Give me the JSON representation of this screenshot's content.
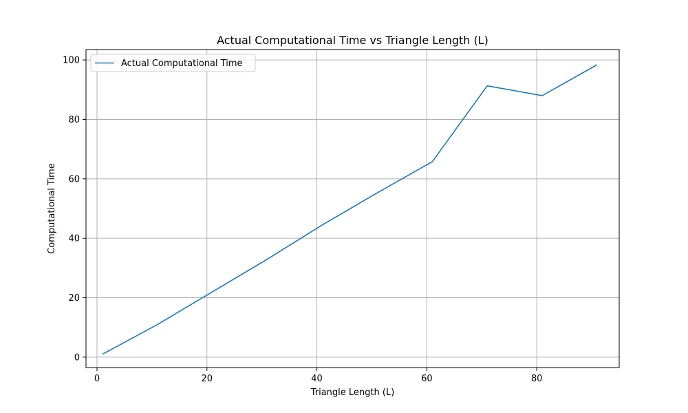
{
  "chart_data": {
    "type": "line",
    "title": "Actual Computational Time vs Triangle Length (L)",
    "xlabel": "Triangle Length (L)",
    "ylabel": "Computational Time",
    "xlim": [
      -2,
      95
    ],
    "ylim": [
      -3.5,
      103.5
    ],
    "xticks": [
      0,
      20,
      40,
      60,
      80
    ],
    "yticks": [
      0,
      20,
      40,
      60,
      80,
      100
    ],
    "grid": true,
    "legend_position": "top-left",
    "series": [
      {
        "name": "Actual Computational Time",
        "color": "#1f77b4",
        "x": [
          1,
          11,
          21,
          31,
          41,
          51,
          61,
          71,
          81,
          91
        ],
        "y": [
          1.0,
          11.0,
          22.0,
          33.0,
          44.5,
          55.3,
          65.8,
          91.3,
          88.0,
          98.4
        ]
      }
    ]
  }
}
